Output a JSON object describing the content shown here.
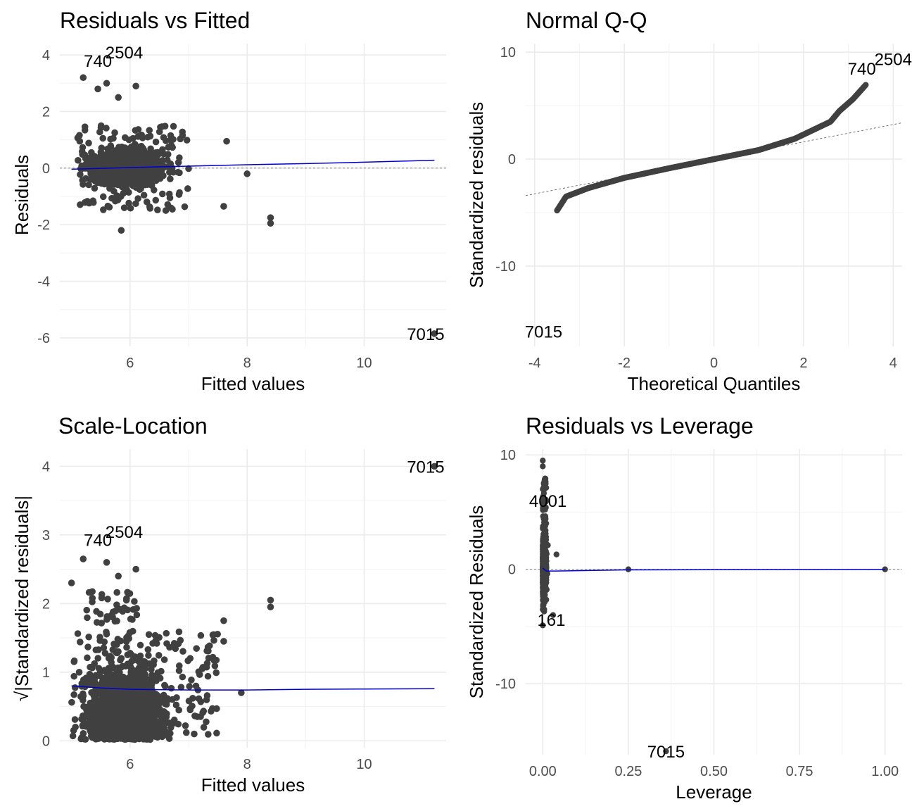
{
  "chart_data": [
    {
      "type": "scatter",
      "title": "Residuals vs Fitted",
      "xlabel": "Fitted values",
      "ylabel": "Residuals",
      "xlim": [
        4.8,
        11.4
      ],
      "ylim": [
        -6.3,
        4.4
      ],
      "xticks": [
        6,
        8,
        10
      ],
      "xtick_labels": [
        "6",
        "8",
        "10"
      ],
      "yticks": [
        -6,
        -4,
        -2,
        0,
        2,
        4
      ],
      "ytick_labels": [
        "-6",
        "-4",
        "-2",
        "0",
        "2",
        "4"
      ],
      "reference_line": 0,
      "smooth": [
        [
          5.0,
          -0.04
        ],
        [
          6.0,
          0.02
        ],
        [
          7.0,
          0.07
        ],
        [
          8.0,
          0.12
        ],
        [
          9.0,
          0.16
        ],
        [
          10.0,
          0.21
        ],
        [
          11.2,
          0.28
        ]
      ],
      "outliers": [
        [
          5.2,
          3.2
        ],
        [
          5.6,
          3.0
        ],
        [
          5.45,
          2.8
        ],
        [
          6.1,
          2.9
        ],
        [
          5.8,
          2.5
        ],
        [
          7.65,
          0.95
        ],
        [
          8.0,
          -0.2
        ],
        [
          7.6,
          -1.35
        ],
        [
          8.4,
          -1.75
        ],
        [
          8.4,
          -1.95
        ],
        [
          5.85,
          -2.2
        ],
        [
          11.2,
          -5.85
        ]
      ],
      "labels": [
        {
          "text": "2504",
          "x": 5.9,
          "y": 4.1
        },
        {
          "text": "740",
          "x": 5.45,
          "y": 3.8
        },
        {
          "text": "7015",
          "x": 11.05,
          "y": -5.85
        }
      ],
      "grid": true
    },
    {
      "type": "scatter",
      "title": "Normal Q-Q",
      "xlabel": "Theoretical Quantiles",
      "ylabel": "Standardized residuals",
      "xlim": [
        -4.2,
        4.2
      ],
      "ylim": [
        -17.5,
        10.8
      ],
      "xticks": [
        -4,
        -2,
        0,
        2,
        4
      ],
      "xtick_labels": [
        "-4",
        "-2",
        "0",
        "2",
        "4"
      ],
      "yticks": [
        -10,
        0,
        10
      ],
      "ytick_labels": [
        "-10",
        "0",
        "10"
      ],
      "reference_line": [
        [
          -4.2,
          -3.4
        ],
        [
          4.2,
          3.4
        ]
      ],
      "qq_curve": [
        [
          -3.5,
          -4.8
        ],
        [
          -3.3,
          -3.5
        ],
        [
          -2.8,
          -2.7
        ],
        [
          -2.0,
          -1.75
        ],
        [
          -1.0,
          -0.85
        ],
        [
          0.0,
          0.0
        ],
        [
          1.0,
          0.85
        ],
        [
          1.8,
          1.9
        ],
        [
          2.3,
          2.9
        ],
        [
          2.6,
          3.5
        ],
        [
          2.8,
          4.5
        ],
        [
          3.1,
          5.6
        ],
        [
          3.4,
          7.0
        ]
      ],
      "labels": [
        {
          "text": "2504",
          "x": 4.0,
          "y": 9.4
        },
        {
          "text": "740",
          "x": 3.3,
          "y": 8.5
        },
        {
          "text": "7015",
          "x": -3.8,
          "y": -16.1
        }
      ],
      "grid": true
    },
    {
      "type": "scatter",
      "title": "Scale-Location",
      "xlabel": "Fitted values",
      "ylabel": "√|Standardized residuals|",
      "xlim": [
        4.8,
        11.4
      ],
      "ylim": [
        -0.1,
        4.25
      ],
      "xticks": [
        6,
        8,
        10
      ],
      "xtick_labels": [
        "6",
        "8",
        "10"
      ],
      "yticks": [
        0,
        1,
        2,
        3,
        4
      ],
      "ytick_labels": [
        "0",
        "1",
        "2",
        "3",
        "4"
      ],
      "smooth": [
        [
          5.0,
          0.8
        ],
        [
          5.5,
          0.77
        ],
        [
          6.0,
          0.75
        ],
        [
          7.0,
          0.74
        ],
        [
          8.0,
          0.74
        ],
        [
          9.0,
          0.75
        ],
        [
          10.0,
          0.755
        ],
        [
          11.2,
          0.76
        ]
      ],
      "outliers": [
        [
          5.2,
          2.65
        ],
        [
          5.6,
          2.6
        ],
        [
          5.8,
          2.4
        ],
        [
          6.1,
          2.5
        ],
        [
          5.0,
          2.3
        ],
        [
          7.6,
          1.75
        ],
        [
          7.6,
          1.45
        ],
        [
          8.4,
          2.05
        ],
        [
          8.4,
          1.95
        ],
        [
          7.9,
          0.7
        ],
        [
          11.2,
          4.0
        ]
      ],
      "labels": [
        {
          "text": "2504",
          "x": 5.9,
          "y": 3.05
        },
        {
          "text": "740",
          "x": 5.45,
          "y": 2.93
        },
        {
          "text": "7015",
          "x": 11.05,
          "y": 4.0
        }
      ],
      "grid": true
    },
    {
      "type": "scatter",
      "title": "Residuals vs Leverage",
      "xlabel": "Leverage",
      "ylabel": "Standardized Residuals",
      "xlim": [
        -0.05,
        1.05
      ],
      "ylim": [
        -16.2,
        10.5
      ],
      "xticks": [
        0,
        0.25,
        0.5,
        0.75,
        1
      ],
      "xtick_labels": [
        "0.00",
        "0.25",
        "0.50",
        "0.75",
        "1.00"
      ],
      "yticks": [
        -10,
        0,
        10
      ],
      "ytick_labels": [
        "-10",
        "0",
        "10"
      ],
      "reference_line": 0,
      "smooth": [
        [
          0.0,
          0.1
        ],
        [
          0.01,
          -0.15
        ],
        [
          0.04,
          -0.15
        ],
        [
          0.25,
          -0.05
        ],
        [
          1.0,
          0.0
        ]
      ],
      "points": [
        [
          0.0,
          9.5
        ],
        [
          0.0,
          9.0
        ],
        [
          0.0,
          7.0
        ],
        [
          0.04,
          1.3
        ],
        [
          0.03,
          -4.0
        ],
        [
          0.0,
          -4.9
        ],
        [
          0.25,
          0.0
        ],
        [
          1.0,
          0.0
        ],
        [
          0.36,
          -15.9
        ]
      ],
      "labels": [
        {
          "text": "4001",
          "x": 0.015,
          "y": 6.0
        },
        {
          "text": "161",
          "x": 0.025,
          "y": -4.4
        },
        {
          "text": "7015",
          "x": 0.36,
          "y": -15.9
        }
      ],
      "grid": true
    }
  ]
}
